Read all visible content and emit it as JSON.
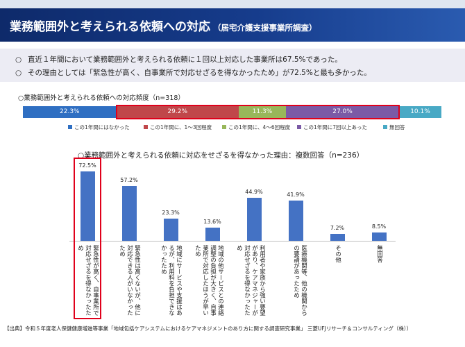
{
  "header": {
    "title": "業務範囲外と考えられる依頼への対応",
    "subtitle": "（居宅介護支援事業所調査）"
  },
  "summary": {
    "bullet": "○",
    "lines": [
      "直近１年間において業務範囲外と考えられる依頼に１回以上対応した事業所は67.5%であった。",
      "その理由としては「緊急性が高く、自事業所で対応せざるを得なかったため」が72.5%と最も多かった。"
    ]
  },
  "chart_data": [
    {
      "type": "bar",
      "orientation": "horizontal-stacked",
      "title": "○業務範囲外と考えられる依頼への対応頻度（n=318）",
      "unit": "%",
      "series": [
        {
          "name": "この1年間にはなかった",
          "value": 22.3,
          "label": "22.3%",
          "color": "#2f6fc2"
        },
        {
          "name": "この1年間に、1～3回程度",
          "value": 29.2,
          "label": "29.2%",
          "color": "#c0474a"
        },
        {
          "name": "この1年間に、4～6回程度",
          "value": 11.3,
          "label": "11.3%",
          "color": "#98b75a"
        },
        {
          "name": "この1年間に7回以上あった",
          "value": 27.0,
          "label": "27.0%",
          "color": "#7b5aa6"
        },
        {
          "name": "無回答",
          "value": 10.1,
          "label": "10.1%",
          "color": "#48a9c5"
        }
      ],
      "highlight": "この1年間に、1～3回程度 〜 この1年間に7回以上あった",
      "legend": "bottom"
    },
    {
      "type": "bar",
      "title": "○業務範囲外と考えられる依頼に対応をせざるを得なかった理由：複数回答（n=236）",
      "categories": [
        "緊急性が高く、自事業所で対応せざるを得なかったため",
        "緊急性は高くないが、他に対応できる人がいなかったため",
        "地域にサービスや支援はあるが、利用料を負担できなかったため",
        "地域の他サービスとの連絡調整の負担が大きく、自事業所で対応したほうが早いため",
        "利用者や家族から強い要望があり、ケアマネジャーが対応せざるを得なかったため",
        "医療機関等、他の機関からの要請があったため",
        "その他",
        "無回答"
      ],
      "values": [
        72.5,
        57.2,
        23.3,
        13.6,
        44.9,
        41.9,
        7.2,
        8.5
      ],
      "labels": [
        "72.5%",
        "57.2%",
        "23.3%",
        "13.6%",
        "44.9%",
        "41.9%",
        "7.2%",
        "8.5%"
      ],
      "ylim": [
        0,
        100
      ],
      "bar_color": "#4472c4",
      "highlight_index": 0,
      "highlight_color": "#e0001b"
    }
  ],
  "footer": "【出典】令和５年度老人保健健康増進等事業「地域包括ケアシステムにおけるケアマネジメントのあり方に関する調査研究事業」 三菱UFJリサーチ＆コンサルティング（株））"
}
